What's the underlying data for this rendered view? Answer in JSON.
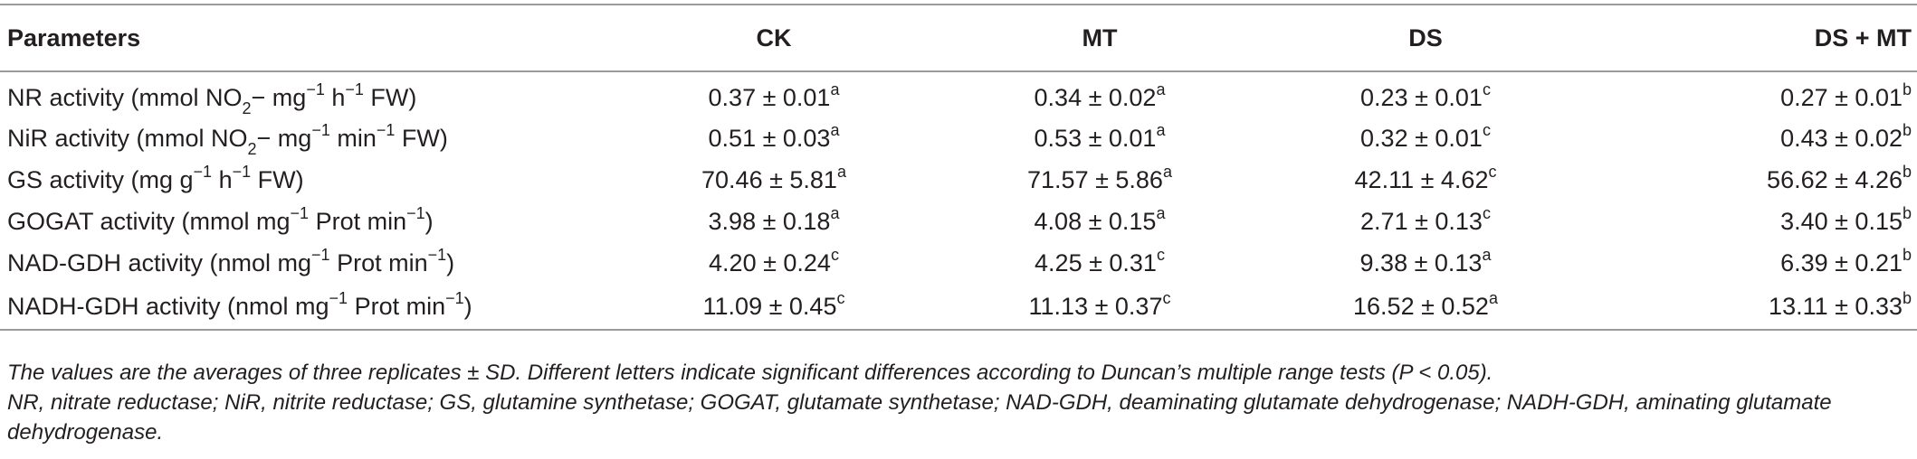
{
  "table": {
    "headers": [
      "Parameters",
      "CK",
      "MT",
      "DS",
      "DS + MT"
    ],
    "rows": [
      {
        "param": {
          "a": "NR activity (mmol NO",
          "sub": "2",
          "b": "− mg",
          "e1": "−1",
          "c": " h",
          "e2": "−1",
          "d": " FW)"
        },
        "cells": [
          {
            "v": "0.37 ± 0.01",
            "s": "a"
          },
          {
            "v": "0.34 ± 0.02",
            "s": "a"
          },
          {
            "v": "0.23 ± 0.01",
            "s": "c"
          },
          {
            "v": "0.27 ± 0.01",
            "s": "b"
          }
        ]
      },
      {
        "param": {
          "a": "NiR activity (mmol NO",
          "sub": "2",
          "b": "− mg",
          "e1": "−1",
          "c": " min",
          "e2": "−1",
          "d": " FW)"
        },
        "cells": [
          {
            "v": "0.51 ± 0.03",
            "s": "a"
          },
          {
            "v": "0.53 ± 0.01",
            "s": "a"
          },
          {
            "v": "0.32 ± 0.01",
            "s": "c"
          },
          {
            "v": "0.43 ± 0.02",
            "s": "b"
          }
        ]
      },
      {
        "param": {
          "a": "GS activity (mg g",
          "e1": "−1",
          "c": " h",
          "e2": "−1",
          "d": " FW)"
        },
        "cells": [
          {
            "v": "70.46 ± 5.81",
            "s": "a"
          },
          {
            "v": "71.57 ± 5.86",
            "s": "a"
          },
          {
            "v": "42.11 ± 4.62",
            "s": "c"
          },
          {
            "v": "56.62 ± 4.26",
            "s": "b"
          }
        ]
      },
      {
        "param": {
          "a": "GOGAT activity (mmol mg",
          "e1": "−1",
          "c": " Prot min",
          "e2": "−1",
          "d": ")"
        },
        "cells": [
          {
            "v": "3.98 ± 0.18",
            "s": "a"
          },
          {
            "v": "4.08 ± 0.15",
            "s": "a"
          },
          {
            "v": "2.71 ± 0.13",
            "s": "c"
          },
          {
            "v": "3.40 ± 0.15",
            "s": "b"
          }
        ]
      },
      {
        "param": {
          "a": "NAD-GDH activity (nmol mg",
          "e1": "−1",
          "c": " Prot min",
          "e2": "−1",
          "d": ")"
        },
        "cells": [
          {
            "v": "4.20 ± 0.24",
            "s": "c"
          },
          {
            "v": "4.25 ± 0.31",
            "s": "c"
          },
          {
            "v": "9.38 ± 0.13",
            "s": "a"
          },
          {
            "v": "6.39 ± 0.21",
            "s": "b"
          }
        ]
      },
      {
        "param": {
          "a": "NADH-GDH activity (nmol mg",
          "e1": "−1",
          "c": " Prot min",
          "e2": "−1",
          "d": ")"
        },
        "cells": [
          {
            "v": "11.09 ± 0.45",
            "s": "c"
          },
          {
            "v": "11.13 ± 0.37",
            "s": "c"
          },
          {
            "v": "16.52 ± 0.52",
            "s": "a"
          },
          {
            "v": "13.11 ± 0.33",
            "s": "b"
          }
        ]
      }
    ]
  },
  "notes": {
    "line1": "The values are the averages of three replicates ± SD. Different letters indicate significant differences according to Duncan’s multiple range tests (P < 0.05).",
    "line2": "NR, nitrate reductase; NiR, nitrite reductase; GS, glutamine synthetase; GOGAT, glutamate synthetase; NAD-GDH, deaminating glutamate dehydrogenase; NADH-GDH, aminating glutamate dehydrogenase."
  }
}
